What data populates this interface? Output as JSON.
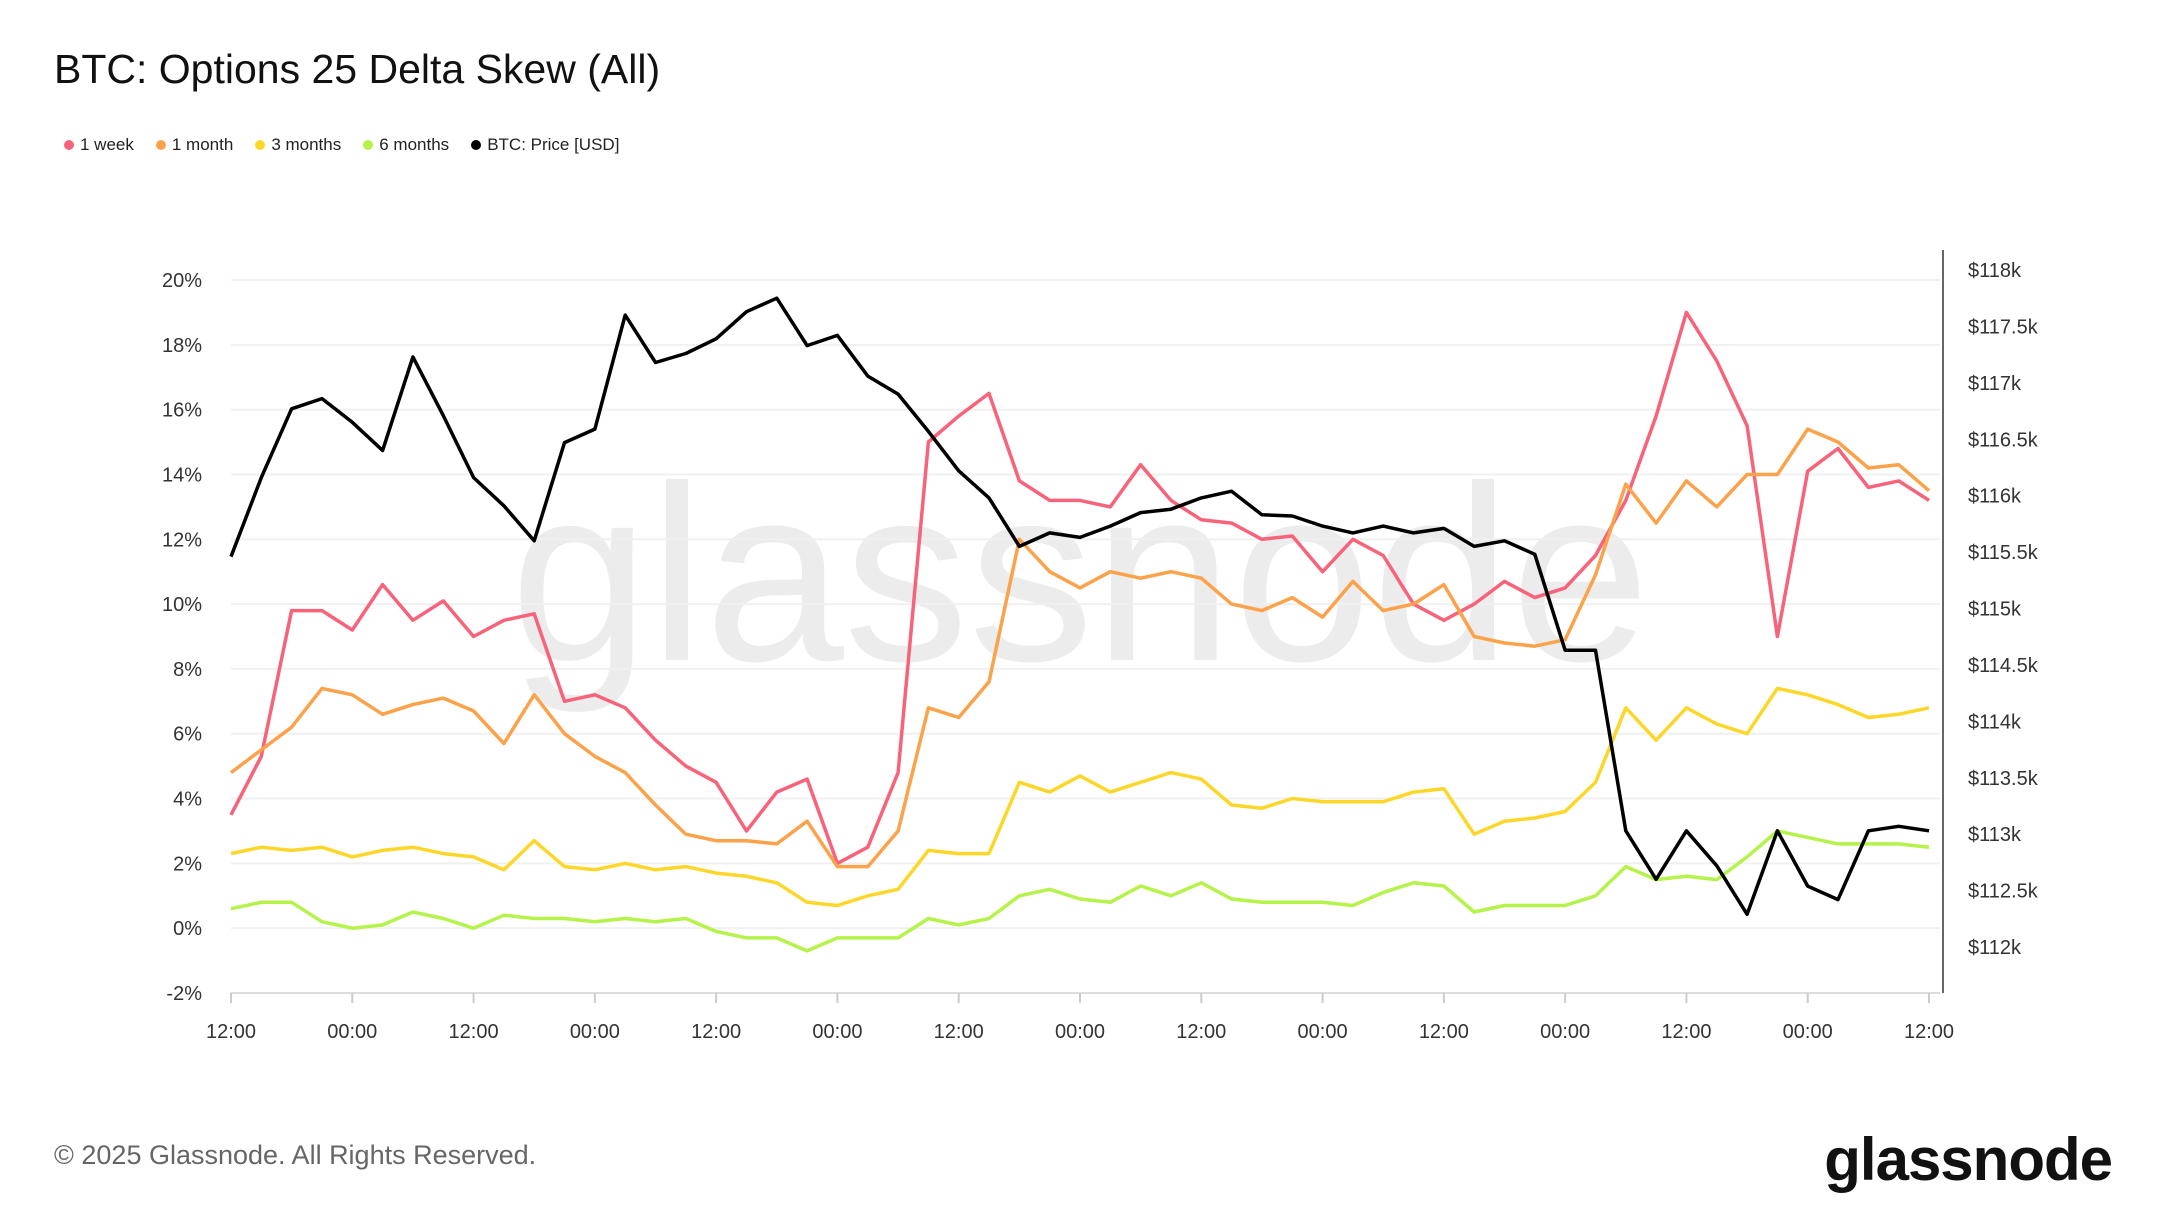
{
  "title": "BTC: Options 25 Delta Skew (All)",
  "footer": "© 2025 Glassnode. All Rights Reserved.",
  "logo": "glassnode",
  "watermark": "glassnode",
  "chart_data": {
    "type": "line",
    "title": "BTC: Options 25 Delta Skew (All)",
    "legend_placement": "top-left",
    "grid": true,
    "x_tick_labels": [
      "12:00",
      "00:00",
      "12:00",
      "00:00",
      "12:00",
      "00:00",
      "12:00",
      "00:00",
      "12:00",
      "00:00",
      "12:00",
      "00:00",
      "12:00",
      "00:00",
      "12:00"
    ],
    "x_step_hours": 3,
    "y_left": {
      "range": [
        -2,
        20
      ],
      "ticks": [
        "-2%",
        "0%",
        "2%",
        "4%",
        "6%",
        "8%",
        "10%",
        "12%",
        "14%",
        "16%",
        "18%",
        "20%"
      ],
      "unit": "%"
    },
    "y_right": {
      "range": [
        112,
        118
      ],
      "ticks": [
        "$112k",
        "$112.5k",
        "$113k",
        "$113.5k",
        "$114k",
        "$114.5k",
        "$115k",
        "$115.5k",
        "$116k",
        "$116.5k",
        "$117k",
        "$117.5k",
        "$118k"
      ],
      "unit": "k USD"
    },
    "series": [
      {
        "name": "1 week",
        "color": "#f7637a",
        "axis": "left",
        "values": [
          3.5,
          5.3,
          9.8,
          9.8,
          9.2,
          10.6,
          9.5,
          10.1,
          9.0,
          9.5,
          9.7,
          7.0,
          7.2,
          6.8,
          5.8,
          5.0,
          4.5,
          3.0,
          4.2,
          4.6,
          2.0,
          2.5,
          4.8,
          15.0,
          15.8,
          16.5,
          13.8,
          13.2,
          13.2,
          13.0,
          14.3,
          13.2,
          12.6,
          12.5,
          12.0,
          12.1,
          11.0,
          12.0,
          11.5,
          10.0,
          9.5,
          10.0,
          10.7,
          10.2,
          10.5,
          11.5,
          13.2,
          15.8,
          19.0,
          17.5,
          15.5,
          9.0,
          14.1,
          14.8,
          13.6,
          13.8,
          13.2
        ]
      },
      {
        "name": "1 month",
        "color": "#fba24a",
        "axis": "left",
        "values": [
          4.8,
          5.5,
          6.2,
          7.4,
          7.2,
          6.6,
          6.9,
          7.1,
          6.7,
          5.7,
          7.2,
          6.0,
          5.3,
          4.8,
          3.8,
          2.9,
          2.7,
          2.7,
          2.6,
          3.3,
          1.9,
          1.9,
          3.0,
          6.8,
          6.5,
          7.6,
          12.0,
          11.0,
          10.5,
          11.0,
          10.8,
          11.0,
          10.8,
          10.0,
          9.8,
          10.2,
          9.6,
          10.7,
          9.8,
          10.0,
          10.6,
          9.0,
          8.8,
          8.7,
          8.9,
          10.9,
          13.7,
          12.5,
          13.8,
          13.0,
          14.0,
          14.0,
          15.4,
          15.0,
          14.2,
          14.3,
          13.5
        ]
      },
      {
        "name": "3 months",
        "color": "#fcd72a",
        "axis": "left",
        "values": [
          2.3,
          2.5,
          2.4,
          2.5,
          2.2,
          2.4,
          2.5,
          2.3,
          2.2,
          1.8,
          2.7,
          1.9,
          1.8,
          2.0,
          1.8,
          1.9,
          1.7,
          1.6,
          1.4,
          0.8,
          0.7,
          1.0,
          1.2,
          2.4,
          2.3,
          2.3,
          4.5,
          4.2,
          4.7,
          4.2,
          4.5,
          4.8,
          4.6,
          3.8,
          3.7,
          4.0,
          3.9,
          3.9,
          3.9,
          4.2,
          4.3,
          2.9,
          3.3,
          3.4,
          3.6,
          4.5,
          6.8,
          5.8,
          6.8,
          6.3,
          6.0,
          7.4,
          7.2,
          6.9,
          6.5,
          6.6,
          6.8
        ]
      },
      {
        "name": "6 months",
        "color": "#b5f24a",
        "axis": "left",
        "values": [
          0.6,
          0.8,
          0.8,
          0.2,
          0.0,
          0.1,
          0.5,
          0.3,
          0.0,
          0.4,
          0.3,
          0.3,
          0.2,
          0.3,
          0.2,
          0.3,
          -0.1,
          -0.3,
          -0.3,
          -0.7,
          -0.3,
          -0.3,
          -0.3,
          0.3,
          0.1,
          0.3,
          1.0,
          1.2,
          0.9,
          0.8,
          1.3,
          1.0,
          1.4,
          0.9,
          0.8,
          0.8,
          0.8,
          0.7,
          1.1,
          1.4,
          1.3,
          0.5,
          0.7,
          0.7,
          0.7,
          1.0,
          1.9,
          1.5,
          1.6,
          1.5,
          2.2,
          3.0,
          2.8,
          2.6,
          2.6,
          2.6,
          2.5
        ]
      },
      {
        "name": "BTC: Price [USD]",
        "color": "#000000",
        "axis": "right",
        "values": [
          115.46,
          116.16,
          116.77,
          116.86,
          116.65,
          116.4,
          117.23,
          116.71,
          116.16,
          115.91,
          115.6,
          116.47,
          116.59,
          117.6,
          117.18,
          117.26,
          117.39,
          117.63,
          117.75,
          117.33,
          117.42,
          117.06,
          116.9,
          116.57,
          116.22,
          115.98,
          115.55,
          115.67,
          115.63,
          115.73,
          115.85,
          115.88,
          115.98,
          116.04,
          115.83,
          115.82,
          115.73,
          115.67,
          115.73,
          115.67,
          115.71,
          115.55,
          115.6,
          115.48,
          114.63,
          114.63,
          113.03,
          112.6,
          113.03,
          112.72,
          112.29,
          113.03,
          112.54,
          112.42,
          113.03,
          113.07,
          113.03
        ]
      }
    ]
  }
}
